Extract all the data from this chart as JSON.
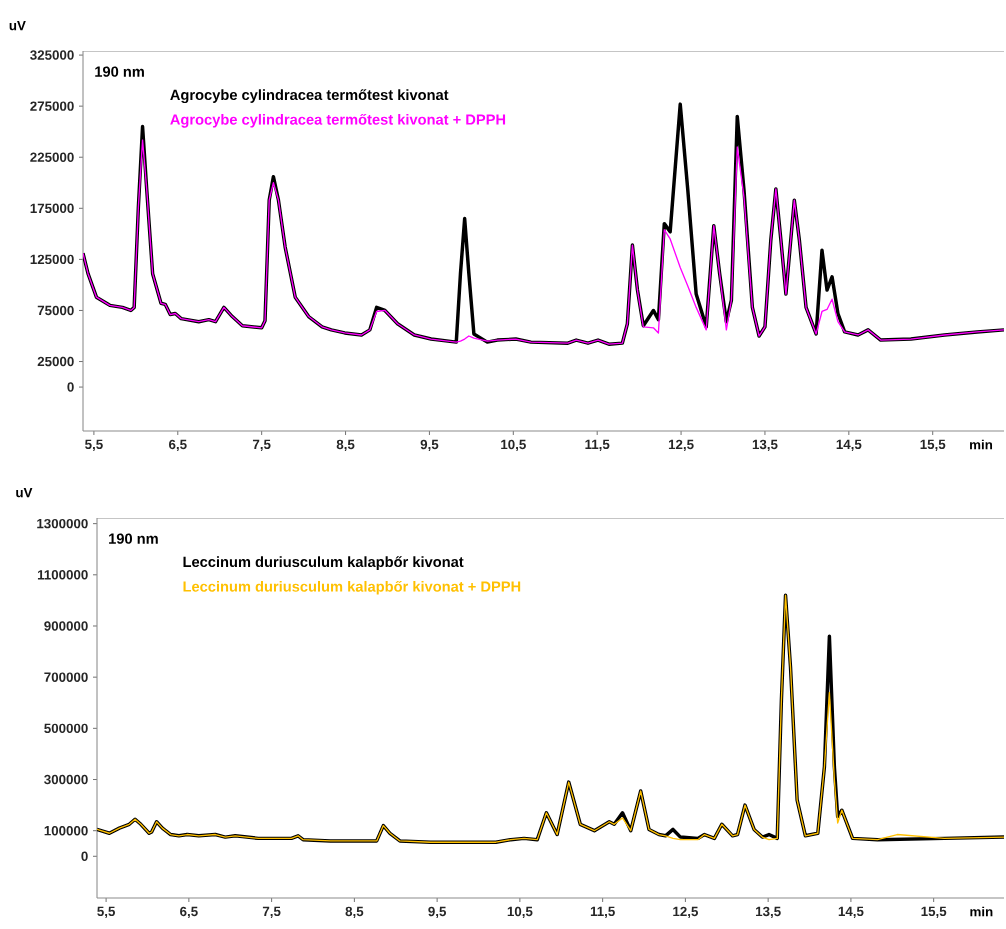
{
  "chart_data": [
    {
      "type": "line",
      "ylabel": "uV",
      "xlabel": "min",
      "legend": "top left",
      "annotations": [
        "190 nm"
      ],
      "xlim": [
        5.37,
        16.35
      ],
      "ylim": [
        -43000,
        329000
      ],
      "xticks": [
        {
          "value": 5.5,
          "label": "5,5"
        },
        {
          "value": 6.5,
          "label": "6,5"
        },
        {
          "value": 7.5,
          "label": "7,5"
        },
        {
          "value": 8.5,
          "label": "8,5"
        },
        {
          "value": 9.5,
          "label": "9,5"
        },
        {
          "value": 10.5,
          "label": "10,5"
        },
        {
          "value": 11.5,
          "label": "11,5"
        },
        {
          "value": 12.5,
          "label": "12,5"
        },
        {
          "value": 13.5,
          "label": "13,5"
        },
        {
          "value": 14.5,
          "label": "14,5"
        },
        {
          "value": 15.5,
          "label": "15,5"
        }
      ],
      "yticks": [
        0,
        25000,
        75000,
        125000,
        175000,
        225000,
        275000,
        325000
      ],
      "series": [
        {
          "name": "Agrocybe cylindracea termőtest kivonat",
          "color": "#000000",
          "x": [
            5.37,
            5.43,
            5.53,
            5.69,
            5.84,
            5.94,
            5.98,
            6.03,
            6.08,
            6.13,
            6.2,
            6.3,
            6.35,
            6.41,
            6.47,
            6.54,
            6.75,
            6.87,
            6.95,
            7.05,
            7.15,
            7.27,
            7.5,
            7.54,
            7.59,
            7.64,
            7.7,
            7.78,
            7.9,
            8.06,
            8.22,
            8.33,
            8.49,
            8.69,
            8.79,
            8.87,
            8.97,
            9.12,
            9.32,
            9.52,
            9.82,
            9.87,
            9.92,
            9.97,
            10.03,
            10.19,
            10.31,
            10.53,
            10.71,
            11.15,
            11.25,
            11.39,
            11.51,
            11.64,
            11.8,
            11.86,
            11.92,
            11.98,
            12.05,
            12.17,
            12.23,
            12.3,
            12.37,
            12.49,
            12.58,
            12.68,
            12.8,
            12.89,
            12.96,
            13.04,
            13.1,
            13.17,
            13.25,
            13.35,
            13.43,
            13.5,
            13.57,
            13.63,
            13.69,
            13.75,
            13.85,
            13.91,
            13.99,
            14.11,
            14.18,
            14.24,
            14.3,
            14.37,
            14.45,
            14.61,
            14.73,
            14.88,
            15.24,
            15.64,
            16.03,
            16.35
          ],
          "values": [
            131000,
            111000,
            88000,
            80000,
            78000,
            75000,
            78000,
            176000,
            255000,
            193000,
            111000,
            82000,
            81000,
            71000,
            72000,
            67000,
            64000,
            66000,
            64000,
            78000,
            69000,
            60000,
            58000,
            65000,
            183000,
            206000,
            183000,
            137000,
            88000,
            69000,
            59000,
            56000,
            53000,
            51000,
            56000,
            78000,
            75000,
            62000,
            51000,
            47000,
            44000,
            111000,
            165000,
            111000,
            52000,
            44000,
            46000,
            47000,
            44000,
            43000,
            46000,
            43000,
            46000,
            42000,
            43000,
            62000,
            139000,
            95000,
            60000,
            75000,
            66000,
            160000,
            152000,
            277000,
            193000,
            91000,
            59000,
            158000,
            111000,
            64000,
            85000,
            265000,
            193000,
            78000,
            50000,
            59000,
            144000,
            194000,
            144000,
            91000,
            183000,
            144000,
            78000,
            52000,
            134000,
            95000,
            108000,
            72000,
            54000,
            51000,
            56000,
            46000,
            47000,
            51000,
            54000,
            56000
          ]
        },
        {
          "name": "Agrocybe cylindracea termőtest kivonat + DPPH",
          "color": "#ff00ff",
          "x": [
            5.37,
            5.43,
            5.53,
            5.69,
            5.84,
            5.94,
            5.98,
            6.03,
            6.08,
            6.13,
            6.2,
            6.3,
            6.35,
            6.41,
            6.47,
            6.54,
            6.75,
            6.87,
            6.95,
            7.05,
            7.15,
            7.27,
            7.5,
            7.54,
            7.59,
            7.64,
            7.7,
            7.78,
            7.9,
            8.06,
            8.22,
            8.33,
            8.49,
            8.69,
            8.79,
            8.87,
            8.97,
            9.12,
            9.32,
            9.52,
            9.82,
            9.87,
            9.92,
            9.97,
            10.03,
            10.19,
            10.31,
            10.53,
            10.71,
            11.15,
            11.25,
            11.39,
            11.51,
            11.64,
            11.8,
            11.86,
            11.92,
            11.98,
            12.05,
            12.17,
            12.23,
            12.3,
            12.37,
            12.49,
            12.58,
            12.68,
            12.8,
            12.89,
            12.96,
            13.04,
            13.1,
            13.17,
            13.25,
            13.35,
            13.43,
            13.5,
            13.57,
            13.63,
            13.69,
            13.75,
            13.85,
            13.91,
            13.99,
            14.11,
            14.18,
            14.24,
            14.3,
            14.37,
            14.45,
            14.61,
            14.73,
            14.88,
            15.24,
            15.64,
            16.03,
            16.35
          ],
          "values": [
            131000,
            111000,
            88000,
            80000,
            78000,
            75000,
            78000,
            176000,
            242000,
            193000,
            111000,
            82000,
            81000,
            71000,
            72000,
            67000,
            64000,
            66000,
            64000,
            78000,
            69000,
            60000,
            58000,
            65000,
            183000,
            200000,
            183000,
            137000,
            88000,
            69000,
            59000,
            56000,
            53000,
            51000,
            56000,
            74000,
            75000,
            62000,
            51000,
            47000,
            44000,
            45000,
            47000,
            50000,
            48000,
            45000,
            46000,
            47000,
            44000,
            43000,
            46000,
            43000,
            46000,
            42000,
            43000,
            62000,
            139000,
            95000,
            59000,
            58000,
            53000,
            154000,
            145000,
            117000,
            99000,
            78000,
            56000,
            158000,
            111000,
            56000,
            85000,
            235000,
            186000,
            78000,
            50000,
            59000,
            144000,
            194000,
            144000,
            91000,
            183000,
            144000,
            78000,
            52000,
            74000,
            76000,
            86000,
            64000,
            54000,
            51000,
            56000,
            46000,
            47000,
            51000,
            54000,
            56000
          ]
        }
      ]
    },
    {
      "type": "line",
      "ylabel": "uV",
      "xlabel": "min",
      "legend": "top left",
      "annotations": [
        "190 nm"
      ],
      "xlim": [
        5.39,
        16.35
      ],
      "ylim": [
        -163000,
        1322000
      ],
      "xticks": [
        {
          "value": 5.5,
          "label": "5,5"
        },
        {
          "value": 6.5,
          "label": "6,5"
        },
        {
          "value": 7.5,
          "label": "7,5"
        },
        {
          "value": 8.5,
          "label": "8,5"
        },
        {
          "value": 9.5,
          "label": "9,5"
        },
        {
          "value": 10.5,
          "label": "10,5"
        },
        {
          "value": 11.5,
          "label": "11,5"
        },
        {
          "value": 12.5,
          "label": "12,5"
        },
        {
          "value": 13.5,
          "label": "13,5"
        },
        {
          "value": 14.5,
          "label": "14,5"
        },
        {
          "value": 15.5,
          "label": "15,5"
        }
      ],
      "yticks": [
        0,
        100000,
        300000,
        500000,
        700000,
        900000,
        1100000,
        1300000
      ],
      "series": [
        {
          "name": "Leccinum duriusculum kalapbőr kivonat",
          "color": "#000000",
          "x": [
            5.39,
            5.54,
            5.66,
            5.78,
            5.85,
            5.92,
            6.02,
            6.05,
            6.11,
            6.18,
            6.28,
            6.38,
            6.48,
            6.62,
            6.82,
            6.94,
            7.06,
            7.34,
            7.74,
            7.82,
            7.88,
            8.21,
            8.77,
            8.85,
            8.93,
            9.05,
            9.42,
            10.21,
            10.39,
            10.55,
            10.71,
            10.82,
            10.95,
            11.09,
            11.23,
            11.4,
            11.58,
            11.64,
            11.74,
            11.84,
            11.96,
            12.06,
            12.18,
            12.26,
            12.35,
            12.44,
            12.65,
            12.73,
            12.85,
            12.94,
            13.07,
            13.13,
            13.22,
            13.33,
            13.43,
            13.51,
            13.61,
            13.66,
            13.71,
            13.77,
            13.85,
            13.95,
            14.1,
            14.18,
            14.24,
            14.3,
            14.34,
            14.39,
            14.52,
            14.82,
            15.63,
            16.35
          ],
          "values": [
            105000,
            90000,
            110000,
            125000,
            145000,
            125000,
            90000,
            95000,
            135000,
            110000,
            85000,
            80000,
            85000,
            80000,
            85000,
            75000,
            80000,
            70000,
            70000,
            80000,
            65000,
            60000,
            60000,
            120000,
            90000,
            60000,
            55000,
            55000,
            65000,
            70000,
            65000,
            170000,
            85000,
            290000,
            125000,
            100000,
            135000,
            125000,
            170000,
            100000,
            255000,
            105000,
            85000,
            80000,
            105000,
            75000,
            70000,
            85000,
            70000,
            125000,
            80000,
            85000,
            200000,
            105000,
            75000,
            85000,
            70000,
            610000,
            1020000,
            740000,
            220000,
            80000,
            90000,
            350000,
            860000,
            350000,
            155000,
            180000,
            70000,
            65000,
            70000,
            75000
          ]
        },
        {
          "name": "Leccinum duriusculum kalapbőr kivonat + DPPH",
          "color": "#ffc000",
          "x": [
            5.39,
            5.54,
            5.66,
            5.78,
            5.85,
            5.92,
            6.02,
            6.05,
            6.11,
            6.18,
            6.28,
            6.38,
            6.48,
            6.62,
            6.82,
            6.94,
            7.06,
            7.34,
            7.74,
            7.82,
            7.88,
            8.21,
            8.77,
            8.85,
            8.93,
            9.05,
            9.42,
            10.21,
            10.39,
            10.55,
            10.71,
            10.82,
            10.95,
            11.09,
            11.23,
            11.4,
            11.58,
            11.64,
            11.74,
            11.84,
            11.96,
            12.06,
            12.18,
            12.26,
            12.35,
            12.44,
            12.65,
            12.73,
            12.85,
            12.94,
            13.07,
            13.13,
            13.22,
            13.33,
            13.43,
            13.51,
            13.61,
            13.66,
            13.71,
            13.77,
            13.85,
            13.95,
            14.1,
            14.18,
            14.24,
            14.3,
            14.34,
            14.39,
            14.52,
            14.82,
            15.06,
            15.63,
            16.35
          ],
          "values": [
            105000,
            90000,
            110000,
            125000,
            145000,
            125000,
            90000,
            95000,
            135000,
            110000,
            85000,
            80000,
            85000,
            80000,
            85000,
            75000,
            80000,
            70000,
            70000,
            80000,
            65000,
            60000,
            60000,
            120000,
            90000,
            60000,
            55000,
            55000,
            65000,
            70000,
            65000,
            170000,
            85000,
            290000,
            125000,
            100000,
            135000,
            125000,
            150000,
            100000,
            255000,
            105000,
            85000,
            80000,
            70000,
            65000,
            65000,
            85000,
            70000,
            125000,
            80000,
            85000,
            200000,
            105000,
            75000,
            65000,
            70000,
            610000,
            1020000,
            740000,
            220000,
            80000,
            90000,
            350000,
            640000,
            300000,
            130000,
            180000,
            70000,
            65000,
            85000,
            70000,
            75000
          ]
        }
      ]
    }
  ]
}
